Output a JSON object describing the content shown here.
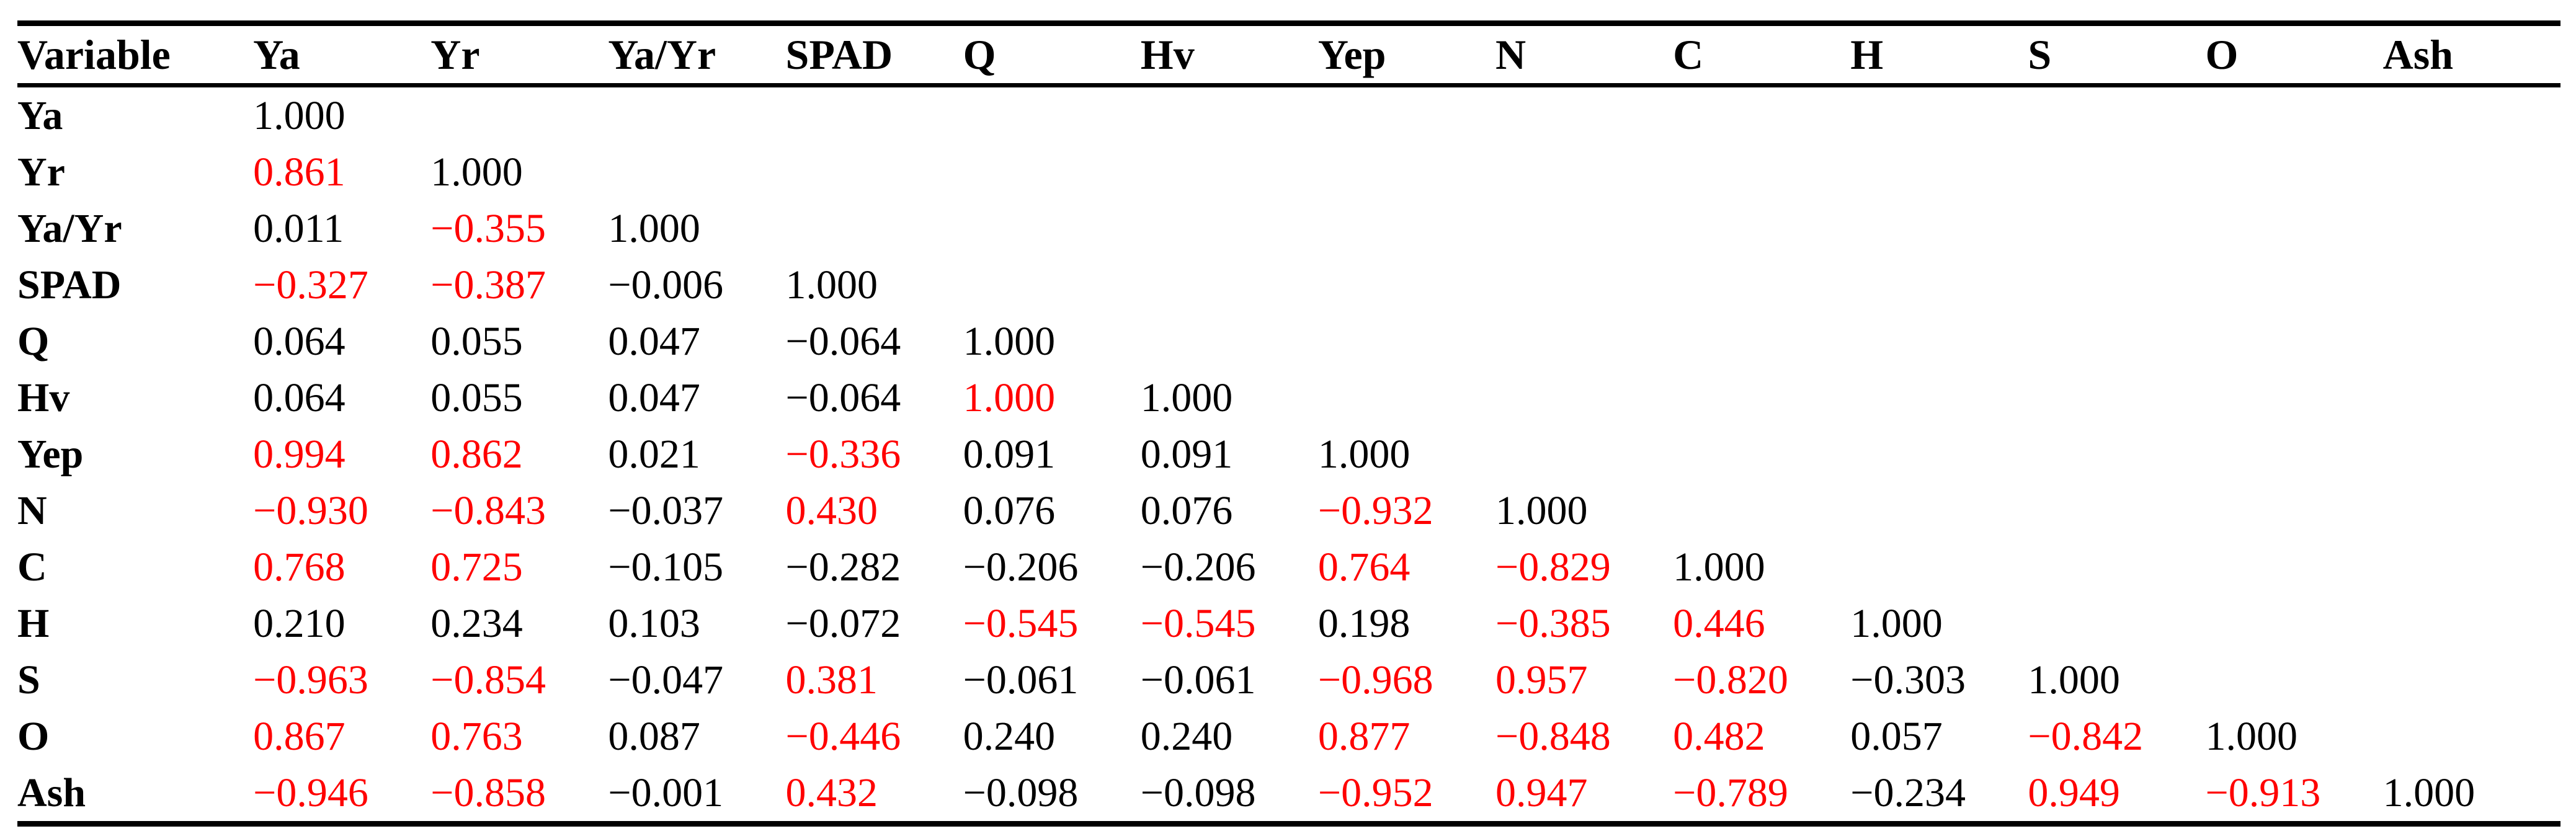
{
  "colors": {
    "text": "#000000",
    "highlight": "#ff0000",
    "rule": "#000000",
    "background": "#ffffff"
  },
  "table": {
    "columns": [
      "Variable",
      "Ya",
      "Yr",
      "Ya/Yr",
      "SPAD",
      "Q",
      "Hv",
      "Yep",
      "N",
      "C",
      "H",
      "S",
      "O",
      "Ash"
    ],
    "rows": [
      {
        "variable": "Ya",
        "cells": [
          {
            "v": "1.000",
            "red": false
          }
        ]
      },
      {
        "variable": "Yr",
        "cells": [
          {
            "v": "0.861",
            "red": true
          },
          {
            "v": "1.000",
            "red": false
          }
        ]
      },
      {
        "variable": "Ya/Yr",
        "cells": [
          {
            "v": "0.011",
            "red": false
          },
          {
            "v": "−0.355",
            "red": true
          },
          {
            "v": "1.000",
            "red": false
          }
        ]
      },
      {
        "variable": "SPAD",
        "cells": [
          {
            "v": "−0.327",
            "red": true
          },
          {
            "v": "−0.387",
            "red": true
          },
          {
            "v": "−0.006",
            "red": false
          },
          {
            "v": "1.000",
            "red": false
          }
        ]
      },
      {
        "variable": "Q",
        "cells": [
          {
            "v": "0.064",
            "red": false
          },
          {
            "v": "0.055",
            "red": false
          },
          {
            "v": "0.047",
            "red": false
          },
          {
            "v": "−0.064",
            "red": false
          },
          {
            "v": "1.000",
            "red": false
          }
        ]
      },
      {
        "variable": "Hv",
        "cells": [
          {
            "v": "0.064",
            "red": false
          },
          {
            "v": "0.055",
            "red": false
          },
          {
            "v": "0.047",
            "red": false
          },
          {
            "v": "−0.064",
            "red": false
          },
          {
            "v": "1.000",
            "red": true
          },
          {
            "v": "1.000",
            "red": false
          }
        ]
      },
      {
        "variable": "Yep",
        "cells": [
          {
            "v": "0.994",
            "red": true
          },
          {
            "v": "0.862",
            "red": true
          },
          {
            "v": "0.021",
            "red": false
          },
          {
            "v": "−0.336",
            "red": true
          },
          {
            "v": "0.091",
            "red": false
          },
          {
            "v": "0.091",
            "red": false
          },
          {
            "v": "1.000",
            "red": false
          }
        ]
      },
      {
        "variable": "N",
        "cells": [
          {
            "v": "−0.930",
            "red": true
          },
          {
            "v": "−0.843",
            "red": true
          },
          {
            "v": "−0.037",
            "red": false
          },
          {
            "v": "0.430",
            "red": true
          },
          {
            "v": "0.076",
            "red": false
          },
          {
            "v": "0.076",
            "red": false
          },
          {
            "v": "−0.932",
            "red": true
          },
          {
            "v": "1.000",
            "red": false
          }
        ]
      },
      {
        "variable": "C",
        "cells": [
          {
            "v": "0.768",
            "red": true
          },
          {
            "v": "0.725",
            "red": true
          },
          {
            "v": "−0.105",
            "red": false
          },
          {
            "v": "−0.282",
            "red": false
          },
          {
            "v": "−0.206",
            "red": false
          },
          {
            "v": "−0.206",
            "red": false
          },
          {
            "v": "0.764",
            "red": true
          },
          {
            "v": "−0.829",
            "red": true
          },
          {
            "v": "1.000",
            "red": false
          }
        ]
      },
      {
        "variable": "H",
        "cells": [
          {
            "v": "0.210",
            "red": false
          },
          {
            "v": "0.234",
            "red": false
          },
          {
            "v": "0.103",
            "red": false
          },
          {
            "v": "−0.072",
            "red": false
          },
          {
            "v": "−0.545",
            "red": true
          },
          {
            "v": "−0.545",
            "red": true
          },
          {
            "v": "0.198",
            "red": false
          },
          {
            "v": "−0.385",
            "red": true
          },
          {
            "v": "0.446",
            "red": true
          },
          {
            "v": "1.000",
            "red": false
          }
        ]
      },
      {
        "variable": "S",
        "cells": [
          {
            "v": "−0.963",
            "red": true
          },
          {
            "v": "−0.854",
            "red": true
          },
          {
            "v": "−0.047",
            "red": false
          },
          {
            "v": "0.381",
            "red": true
          },
          {
            "v": "−0.061",
            "red": false
          },
          {
            "v": "−0.061",
            "red": false
          },
          {
            "v": "−0.968",
            "red": true
          },
          {
            "v": "0.957",
            "red": true
          },
          {
            "v": "−0.820",
            "red": true
          },
          {
            "v": "−0.303",
            "red": false
          },
          {
            "v": "1.000",
            "red": false
          }
        ]
      },
      {
        "variable": "O",
        "cells": [
          {
            "v": "0.867",
            "red": true
          },
          {
            "v": "0.763",
            "red": true
          },
          {
            "v": "0.087",
            "red": false
          },
          {
            "v": "−0.446",
            "red": true
          },
          {
            "v": "0.240",
            "red": false
          },
          {
            "v": "0.240",
            "red": false
          },
          {
            "v": "0.877",
            "red": true
          },
          {
            "v": "−0.848",
            "red": true
          },
          {
            "v": "0.482",
            "red": true
          },
          {
            "v": "0.057",
            "red": false
          },
          {
            "v": "−0.842",
            "red": true
          },
          {
            "v": "1.000",
            "red": false
          }
        ]
      },
      {
        "variable": "Ash",
        "cells": [
          {
            "v": "−0.946",
            "red": true
          },
          {
            "v": "−0.858",
            "red": true
          },
          {
            "v": "−0.001",
            "red": false
          },
          {
            "v": "0.432",
            "red": true
          },
          {
            "v": "−0.098",
            "red": false
          },
          {
            "v": "−0.098",
            "red": false
          },
          {
            "v": "−0.952",
            "red": true
          },
          {
            "v": "0.947",
            "red": true
          },
          {
            "v": "−0.789",
            "red": true
          },
          {
            "v": "−0.234",
            "red": false
          },
          {
            "v": "0.949",
            "red": true
          },
          {
            "v": "−0.913",
            "red": true
          },
          {
            "v": "1.000",
            "red": false
          }
        ]
      }
    ]
  }
}
